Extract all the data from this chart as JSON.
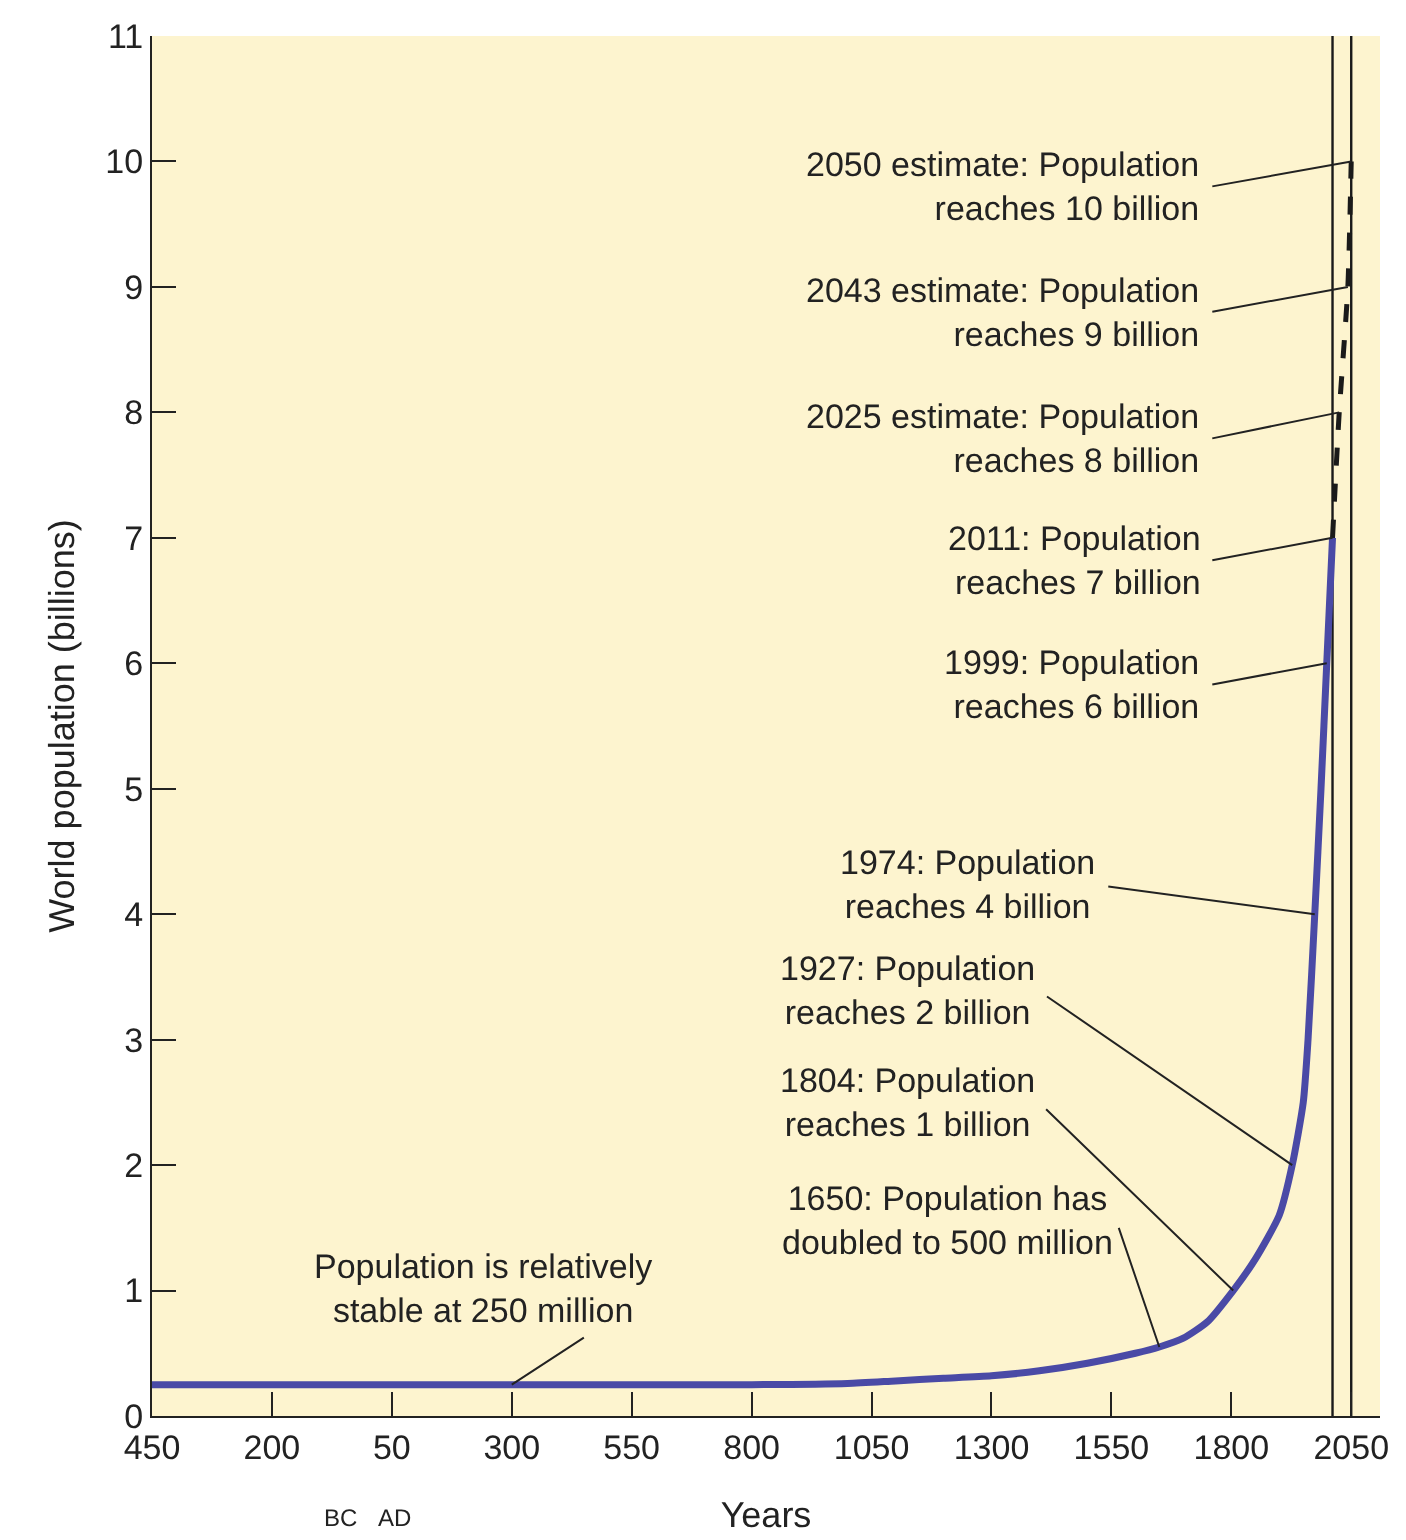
{
  "chart_data": {
    "type": "line",
    "xlabel": "Years",
    "ylabel": "World population (billions)",
    "x": [
      -450,
      -200,
      0,
      300,
      550,
      800,
      1000,
      1100,
      1200,
      1300,
      1400,
      1500,
      1600,
      1650,
      1700,
      1750,
      1804,
      1850,
      1900,
      1927,
      1950,
      1960,
      1974,
      1987,
      1999,
      2011
    ],
    "series": [
      {
        "color": "#4a4aa6",
        "values": [
          0.25,
          0.25,
          0.25,
          0.25,
          0.25,
          0.25,
          0.26,
          0.28,
          0.3,
          0.32,
          0.36,
          0.42,
          0.5,
          0.55,
          0.62,
          0.75,
          1,
          1.25,
          1.6,
          2,
          2.5,
          3,
          4,
          5,
          6,
          7
        ],
        "line_style": "solid"
      },
      {
        "color": "#1a1a1a",
        "x": [
          2011,
          2025,
          2043,
          2050
        ],
        "values": [
          7,
          8,
          9,
          10
        ],
        "line_style": "dashed"
      }
    ],
    "xlim": [
      -450,
      2110
    ],
    "ylim": [
      0,
      11
    ],
    "xticks": [
      {
        "value": -450,
        "label": "450"
      },
      {
        "value": -200,
        "label": "200"
      },
      50,
      300,
      550,
      800,
      1050,
      1300,
      1550,
      1800,
      2050
    ],
    "yticks": [
      0,
      1,
      2,
      3,
      4,
      5,
      6,
      7,
      8,
      9,
      10,
      11
    ],
    "grid": false,
    "marker": "none",
    "ref_lines": [
      {
        "axis": "x",
        "value": 2011,
        "color": "#1a1a1a"
      },
      {
        "axis": "x",
        "value": 2050,
        "color": "#1a1a1a"
      }
    ],
    "annotations": [
      {
        "text": "2050 estimate: Population\nreaches 10 billion",
        "x": 2050,
        "y": 10
      },
      {
        "text": "2043 estimate: Population\nreaches 9 billion",
        "x": 2043,
        "y": 9
      },
      {
        "text": "2025 estimate: Population\nreaches 8 billion",
        "x": 2025,
        "y": 8
      },
      {
        "text": "2011: Population\nreaches 7 billion",
        "x": 2011,
        "y": 7
      },
      {
        "text": "1999: Population\nreaches 6 billion",
        "x": 1999,
        "y": 6
      },
      {
        "text": "1974: Population\nreaches 4 billion",
        "x": 1974,
        "y": 4
      },
      {
        "text": "1927: Population\nreaches 2 billion",
        "x": 1927,
        "y": 2
      },
      {
        "text": "1804: Population\nreaches 1 billion",
        "x": 1804,
        "y": 1
      },
      {
        "text": "1650: Population has\ndoubled to 500 million",
        "x": 1650,
        "y": 0.55
      },
      {
        "text": "Population is relatively\nstable at 250 million",
        "x": 300,
        "y": 0.25
      },
      "BC",
      "AD"
    ]
  }
}
